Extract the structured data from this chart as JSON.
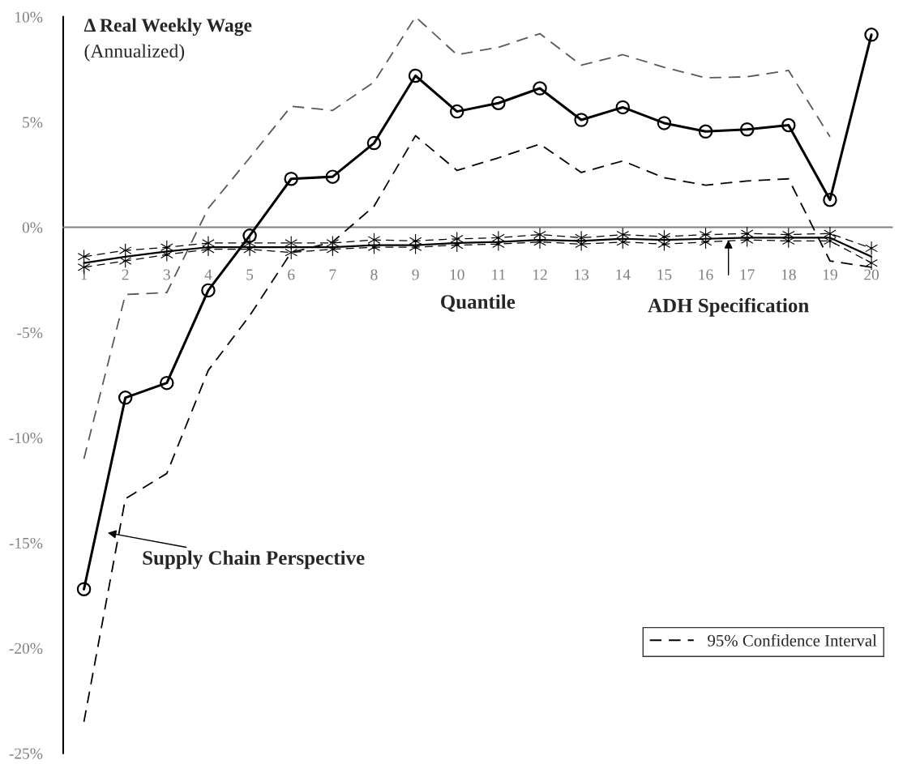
{
  "chart_data": {
    "type": "line",
    "title": "Δ Real Weekly Wage",
    "subtitle": "(Annualized)",
    "xlabel": "Quantile",
    "categories": [
      "1",
      "2",
      "3",
      "4",
      "5",
      "6",
      "7",
      "8",
      "9",
      "10",
      "11",
      "12",
      "13",
      "14",
      "15",
      "16",
      "17",
      "18",
      "19",
      "20"
    ],
    "series": [
      {
        "color": "#000000",
        "line_style": "solid",
        "marker": "circle",
        "values": [
          -17.2,
          -8.1,
          -7.4,
          -3.0,
          -0.4,
          2.3,
          2.4,
          4.0,
          7.2,
          5.5,
          5.9,
          6.6,
          5.1,
          5.7,
          4.95,
          4.55,
          4.65,
          4.85,
          1.3,
          9.15
        ]
      },
      {
        "color": "#595959",
        "line_style": "dashed",
        "marker": "none",
        "values": [
          -11.0,
          -3.2,
          -3.1,
          0.9,
          3.3,
          5.75,
          5.55,
          6.9,
          10.0,
          8.2,
          8.55,
          9.2,
          7.7,
          8.2,
          7.6,
          7.1,
          7.15,
          7.45,
          4.3,
          null
        ]
      },
      {
        "name": "95% Confidence Interval",
        "color": "#000000",
        "line_style": "dashed",
        "marker": "none",
        "values": [
          -23.5,
          -12.9,
          -11.7,
          -6.8,
          -4.2,
          -1.2,
          -0.7,
          1.0,
          4.35,
          2.7,
          3.3,
          3.95,
          2.6,
          3.15,
          2.35,
          2.0,
          2.2,
          2.3,
          -1.6,
          -1.9
        ]
      },
      {
        "color": "#000000",
        "line_style": "solid",
        "marker": "none",
        "values": [
          -1.7,
          -1.4,
          -1.15,
          -0.95,
          -0.95,
          -0.95,
          -0.95,
          -0.85,
          -0.85,
          -0.75,
          -0.7,
          -0.6,
          -0.65,
          -0.55,
          -0.6,
          -0.55,
          -0.5,
          -0.5,
          -0.5,
          -1.4
        ]
      },
      {
        "color": "#000000",
        "line_style": "dashed",
        "marker": "cross",
        "values": [
          -1.4,
          -1.1,
          -0.95,
          -0.75,
          -0.75,
          -0.75,
          -0.75,
          -0.6,
          -0.65,
          -0.55,
          -0.5,
          -0.35,
          -0.5,
          -0.35,
          -0.45,
          -0.35,
          -0.3,
          -0.35,
          -0.3,
          -1.0
        ]
      },
      {
        "color": "#000000",
        "line_style": "dashed",
        "marker": "cross",
        "values": [
          -1.9,
          -1.6,
          -1.3,
          -1.05,
          -1.05,
          -1.2,
          -1.05,
          -0.95,
          -0.95,
          -0.85,
          -0.8,
          -0.7,
          -0.8,
          -0.7,
          -0.8,
          -0.7,
          -0.6,
          -0.65,
          -0.65,
          -1.7
        ]
      }
    ],
    "ylim": [
      -25,
      10
    ],
    "yticks": [
      {
        "value": -25,
        "label": "-25%"
      },
      {
        "value": -20,
        "label": "-20%"
      },
      {
        "value": -15,
        "label": "-15%"
      },
      {
        "value": -10,
        "label": "-10%"
      },
      {
        "value": -5,
        "label": "-5%"
      },
      {
        "value": 0,
        "label": "0%"
      },
      {
        "value": 5,
        "label": "5%"
      },
      {
        "value": 10,
        "label": "10%"
      }
    ],
    "annotations": [
      "Supply Chain Perspective",
      {
        "text": "ADH Specification",
        "y": -0.5
      }
    ],
    "legend": "bottom right"
  }
}
